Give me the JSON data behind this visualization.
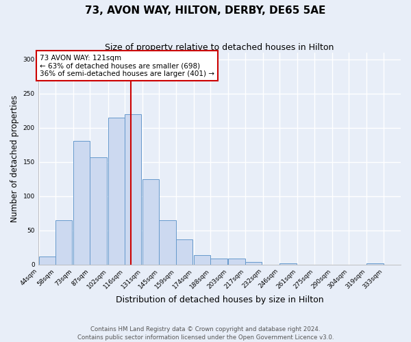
{
  "title": "73, AVON WAY, HILTON, DERBY, DE65 5AE",
  "subtitle": "Size of property relative to detached houses in Hilton",
  "xlabel": "Distribution of detached houses by size in Hilton",
  "ylabel": "Number of detached properties",
  "bin_labels": [
    "44sqm",
    "58sqm",
    "73sqm",
    "87sqm",
    "102sqm",
    "116sqm",
    "131sqm",
    "145sqm",
    "159sqm",
    "174sqm",
    "188sqm",
    "203sqm",
    "217sqm",
    "232sqm",
    "246sqm",
    "261sqm",
    "275sqm",
    "290sqm",
    "304sqm",
    "319sqm",
    "333sqm"
  ],
  "bin_values": [
    12,
    65,
    181,
    157,
    215,
    220,
    125,
    65,
    37,
    14,
    9,
    9,
    4,
    0,
    2,
    0,
    0,
    0,
    0,
    2
  ],
  "bin_edges": [
    44,
    58,
    73,
    87,
    102,
    116,
    131,
    145,
    159,
    174,
    188,
    203,
    217,
    232,
    246,
    261,
    275,
    290,
    304,
    319,
    333
  ],
  "property_value": 121,
  "bar_fill_color": "#ccd9f0",
  "bar_edge_color": "#6699cc",
  "vline_color": "#cc0000",
  "vline_x": 121,
  "annotation_text": "73 AVON WAY: 121sqm\n← 63% of detached houses are smaller (698)\n36% of semi-detached houses are larger (401) →",
  "annotation_box_edgecolor": "#cc0000",
  "annotation_box_facecolor": "#ffffff",
  "ylim": [
    0,
    310
  ],
  "yticks": [
    0,
    50,
    100,
    150,
    200,
    250,
    300
  ],
  "footnote": "Contains HM Land Registry data © Crown copyright and database right 2024.\nContains public sector information licensed under the Open Government Licence v3.0.",
  "background_color": "#e8eef8",
  "grid_color": "#ffffff"
}
